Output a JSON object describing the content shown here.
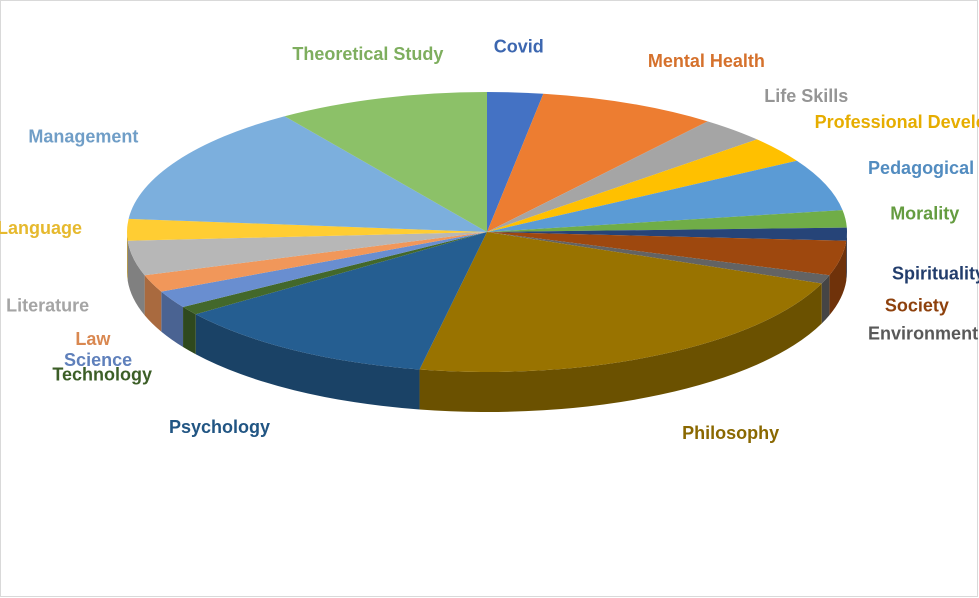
{
  "chart_data": {
    "type": "pie",
    "categories": [
      "Covid",
      "Mental Health",
      "Life Skills",
      "Professional Development",
      "Pedagogical Practices",
      "Morality",
      "Spirituality",
      "Society",
      "Environment",
      "Philosophy",
      "Psychology",
      "Technology",
      "Science",
      "Law",
      "Literature",
      "Language",
      "Management",
      "Theoretical Study"
    ],
    "values": [
      2.5,
      8,
      3,
      3,
      6,
      2,
      1.5,
      4,
      1,
      22,
      12,
      1,
      2,
      2,
      4,
      2.5,
      14,
      9.5
    ],
    "colors": [
      "#4472c4",
      "#ed7d31",
      "#a5a5a5",
      "#ffc000",
      "#5b9bd5",
      "#70ad47",
      "#264478",
      "#9e480e",
      "#636363",
      "#997300",
      "#255e91",
      "#43682b",
      "#698ed0",
      "#f1975a",
      "#b7b7b7",
      "#ffcd33",
      "#7cafdd",
      "#8cc168"
    ]
  }
}
